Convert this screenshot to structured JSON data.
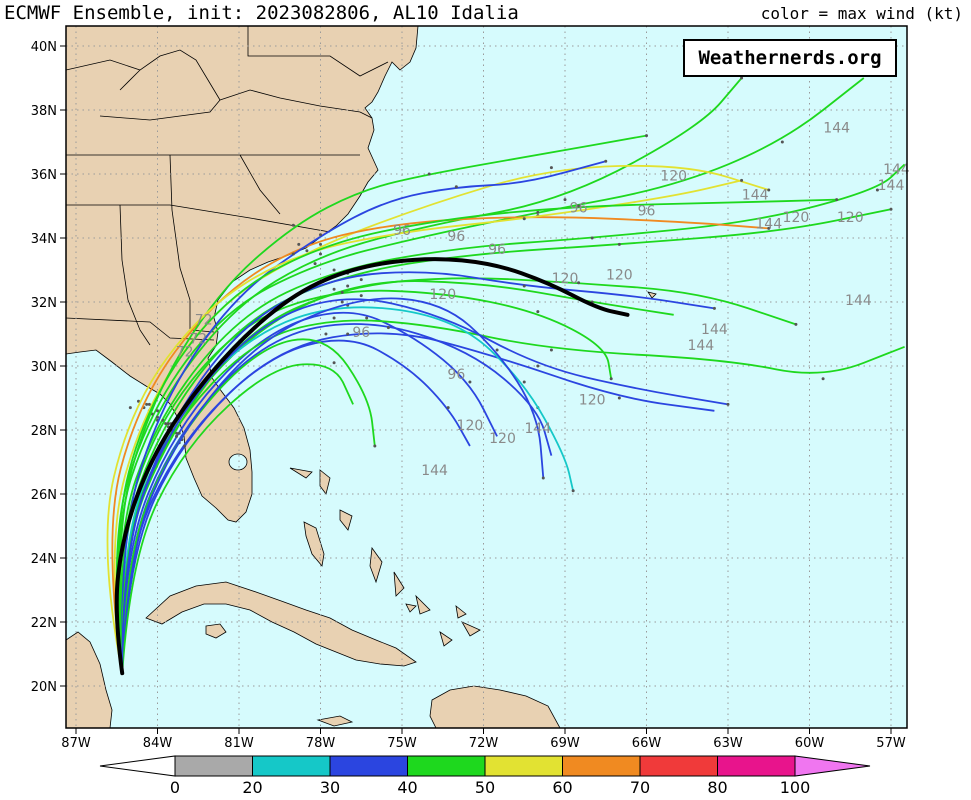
{
  "header": {
    "title": "ECMWF Ensemble, init: 2023082806, AL10 Idalia",
    "legend_note": "color = max wind (kt)"
  },
  "brand": "Weathernerds.org",
  "axes": {
    "lon_ticks": [
      "87W",
      "84W",
      "81W",
      "78W",
      "75W",
      "72W",
      "69W",
      "66W",
      "63W",
      "60W",
      "57W"
    ],
    "lat_ticks": [
      "40N",
      "38N",
      "36N",
      "34N",
      "32N",
      "30N",
      "28N",
      "26N",
      "24N",
      "22N",
      "20N"
    ]
  },
  "colors": {
    "ocean": "#d6fbfd",
    "land": "#e8d1b2",
    "grid": "#9a9a9a",
    "mean_track": "#000000"
  },
  "colorbar": {
    "labels": [
      "0",
      "20",
      "30",
      "40",
      "50",
      "60",
      "70",
      "80",
      "100"
    ],
    "bins": [
      {
        "color": "#ffffff"
      },
      {
        "color": "#a9a9a9"
      },
      {
        "color": "#15c8c8"
      },
      {
        "color": "#2b45e0"
      },
      {
        "color": "#1ed81e"
      },
      {
        "color": "#e2e232"
      },
      {
        "color": "#f08a21"
      },
      {
        "color": "#f03a3a"
      },
      {
        "color": "#e8148c"
      },
      {
        "color": "#f076f0"
      }
    ]
  },
  "forecast_hour_labels": [
    "72",
    "72",
    "72",
    "96",
    "96",
    "96",
    "96",
    "96",
    "96",
    "96",
    "120",
    "120",
    "120",
    "120",
    "120",
    "120",
    "120",
    "120",
    "120",
    "144",
    "144",
    "144",
    "144",
    "144",
    "144",
    "144",
    "144",
    "144",
    "144"
  ],
  "tracks": [
    {
      "color": "#1ed81e",
      "pts": [
        [
          -85.3,
          20.4
        ],
        [
          -85.8,
          24.5
        ],
        [
          -84.3,
          28.6
        ],
        [
          -81.6,
          31.7
        ],
        [
          -78.2,
          33.2
        ],
        [
          -74.5,
          34.0
        ],
        [
          -70.0,
          34.8
        ],
        [
          -65.0,
          35.6
        ],
        [
          -61.0,
          37.0
        ],
        [
          -58.0,
          39.0
        ]
      ]
    },
    {
      "color": "#1ed81e",
      "pts": [
        [
          -85.3,
          20.4
        ],
        [
          -85.7,
          24.6
        ],
        [
          -84.2,
          28.5
        ],
        [
          -81.3,
          31.8
        ],
        [
          -78.0,
          33.5
        ],
        [
          -74.0,
          34.4
        ],
        [
          -69.0,
          35.2
        ],
        [
          -64.0,
          37.5
        ],
        [
          -62.5,
          39.0
        ]
      ]
    },
    {
      "color": "#e2e232",
      "pts": [
        [
          -85.3,
          20.4
        ],
        [
          -85.9,
          24.4
        ],
        [
          -84.5,
          28.7
        ],
        [
          -81.8,
          31.9
        ],
        [
          -78.5,
          33.6
        ],
        [
          -74.2,
          35.0
        ],
        [
          -69.5,
          36.2
        ],
        [
          -64.5,
          36.3
        ],
        [
          -61.5,
          35.5
        ]
      ]
    },
    {
      "color": "#1ed81e",
      "pts": [
        [
          -85.3,
          20.4
        ],
        [
          -85.6,
          24.5
        ],
        [
          -84.0,
          28.4
        ],
        [
          -81.0,
          31.6
        ],
        [
          -77.5,
          33.0
        ],
        [
          -73.0,
          33.7
        ],
        [
          -68.0,
          34.0
        ],
        [
          -62.0,
          34.5
        ],
        [
          -57.5,
          35.5
        ],
        [
          -56.5,
          36.3
        ]
      ]
    },
    {
      "color": "#1ed81e",
      "pts": [
        [
          -85.3,
          20.4
        ],
        [
          -85.5,
          24.3
        ],
        [
          -83.8,
          28.3
        ],
        [
          -80.8,
          31.5
        ],
        [
          -77.0,
          32.9
        ],
        [
          -72.5,
          33.5
        ],
        [
          -67.0,
          33.8
        ],
        [
          -61.0,
          34.2
        ],
        [
          -57.0,
          34.9
        ]
      ]
    },
    {
      "color": "#f08a21",
      "pts": [
        [
          -85.3,
          20.4
        ],
        [
          -86.0,
          24.7
        ],
        [
          -84.7,
          28.9
        ],
        [
          -82.0,
          32.0
        ],
        [
          -78.8,
          33.8
        ],
        [
          -75.0,
          34.5
        ],
        [
          -70.0,
          34.7
        ],
        [
          -64.5,
          34.5
        ],
        [
          -61.5,
          34.3
        ]
      ]
    },
    {
      "color": "#1ed81e",
      "pts": [
        [
          -85.3,
          20.4
        ],
        [
          -85.4,
          24.2
        ],
        [
          -83.6,
          28.1
        ],
        [
          -80.4,
          31.2
        ],
        [
          -76.5,
          32.7
        ],
        [
          -72.0,
          32.6
        ],
        [
          -68.0,
          32.0
        ],
        [
          -65.0,
          31.6
        ]
      ]
    },
    {
      "color": "#2b45e0",
      "pts": [
        [
          -85.3,
          20.4
        ],
        [
          -85.3,
          24.0
        ],
        [
          -83.4,
          28.0
        ],
        [
          -80.2,
          31.0
        ],
        [
          -77.0,
          31.9
        ],
        [
          -74.5,
          30.9
        ],
        [
          -72.5,
          29.5
        ],
        [
          -71.5,
          27.8
        ]
      ]
    },
    {
      "color": "#2b45e0",
      "pts": [
        [
          -85.3,
          20.4
        ],
        [
          -85.2,
          24.1
        ],
        [
          -83.3,
          27.9
        ],
        [
          -80.0,
          30.9
        ],
        [
          -76.3,
          31.5
        ],
        [
          -72.5,
          30.5
        ],
        [
          -70.0,
          28.7
        ],
        [
          -69.5,
          27.2
        ]
      ]
    },
    {
      "color": "#2b45e0",
      "pts": [
        [
          -85.3,
          20.4
        ],
        [
          -85.1,
          24.0
        ],
        [
          -83.1,
          27.7
        ],
        [
          -79.6,
          30.6
        ],
        [
          -75.5,
          31.2
        ],
        [
          -71.5,
          30.3
        ],
        [
          -67.0,
          29.0
        ],
        [
          -63.5,
          28.6
        ]
      ]
    },
    {
      "color": "#1ed81e",
      "pts": [
        [
          -85.3,
          20.4
        ],
        [
          -85.3,
          24.3
        ],
        [
          -83.6,
          28.0
        ],
        [
          -80.5,
          30.8
        ],
        [
          -77.5,
          31.5
        ],
        [
          -74.0,
          31.3
        ],
        [
          -69.5,
          30.5
        ],
        [
          -63.0,
          30.2
        ],
        [
          -59.5,
          29.6
        ],
        [
          -56.5,
          30.6
        ]
      ]
    },
    {
      "color": "#15c8c8",
      "pts": [
        [
          -85.3,
          20.4
        ],
        [
          -85.4,
          24.2
        ],
        [
          -83.7,
          28.2
        ],
        [
          -80.6,
          31.0
        ],
        [
          -77.2,
          32.0
        ],
        [
          -73.0,
          31.5
        ],
        [
          -70.5,
          29.5
        ],
        [
          -69.0,
          27.2
        ],
        [
          -68.7,
          26.1
        ]
      ]
    },
    {
      "color": "#2b45e0",
      "pts": [
        [
          -85.3,
          20.4
        ],
        [
          -85.2,
          24.0
        ],
        [
          -83.2,
          27.6
        ],
        [
          -80.0,
          30.3
        ],
        [
          -77.0,
          31.0
        ],
        [
          -74.8,
          30.0
        ],
        [
          -73.3,
          28.7
        ],
        [
          -72.5,
          27.5
        ]
      ]
    },
    {
      "color": "#1ed81e",
      "pts": [
        [
          -85.3,
          20.4
        ],
        [
          -85.5,
          24.4
        ],
        [
          -84.0,
          28.3
        ],
        [
          -81.0,
          31.3
        ],
        [
          -77.5,
          32.4
        ],
        [
          -73.5,
          32.3
        ],
        [
          -70.0,
          31.7
        ],
        [
          -67.5,
          30.6
        ],
        [
          -67.3,
          29.6
        ]
      ]
    },
    {
      "color": "#2b45e0",
      "pts": [
        [
          -85.3,
          20.4
        ],
        [
          -85.4,
          24.5
        ],
        [
          -84.0,
          28.6
        ],
        [
          -81.3,
          32.1
        ],
        [
          -78.0,
          34.1
        ],
        [
          -75.5,
          35.2
        ],
        [
          -73.0,
          35.6
        ],
        [
          -70.5,
          35.7
        ],
        [
          -67.5,
          36.4
        ]
      ]
    },
    {
      "color": "#1ed81e",
      "pts": [
        [
          -85.3,
          20.4
        ],
        [
          -85.6,
          24.7
        ],
        [
          -84.3,
          28.8
        ],
        [
          -81.8,
          32.3
        ],
        [
          -79.0,
          34.4
        ],
        [
          -76.5,
          35.5
        ],
        [
          -74.0,
          36.0
        ],
        [
          -70.0,
          36.6
        ],
        [
          -66.0,
          37.2
        ]
      ]
    },
    {
      "color": "#1ed81e",
      "pts": [
        [
          -85.3,
          20.4
        ],
        [
          -85.2,
          24.1
        ],
        [
          -83.3,
          27.8
        ],
        [
          -80.3,
          30.6
        ],
        [
          -77.8,
          31.0
        ],
        [
          -76.2,
          29.0
        ],
        [
          -76.0,
          27.5
        ]
      ]
    },
    {
      "color": "#2b45e0",
      "pts": [
        [
          -85.3,
          20.4
        ],
        [
          -85.1,
          24.2
        ],
        [
          -83.2,
          27.9
        ],
        [
          -80.2,
          30.9
        ],
        [
          -76.5,
          32.2
        ],
        [
          -73.5,
          32.0
        ],
        [
          -71.5,
          30.5
        ],
        [
          -70.0,
          28.5
        ],
        [
          -69.8,
          26.5
        ]
      ]
    },
    {
      "color": "#1ed81e",
      "pts": [
        [
          -85.3,
          20.4
        ],
        [
          -85.4,
          24.1
        ],
        [
          -83.5,
          28.0
        ],
        [
          -80.6,
          31.2
        ],
        [
          -77.0,
          32.5
        ],
        [
          -73.0,
          32.8
        ],
        [
          -68.5,
          32.6
        ],
        [
          -64.0,
          32.3
        ],
        [
          -60.5,
          31.3
        ]
      ]
    },
    {
      "color": "#2b45e0",
      "pts": [
        [
          -85.3,
          20.4
        ],
        [
          -85.3,
          24.3
        ],
        [
          -83.5,
          28.2
        ],
        [
          -80.5,
          31.2
        ],
        [
          -77.2,
          32.3
        ],
        [
          -73.5,
          31.6
        ],
        [
          -70.0,
          30.0
        ],
        [
          -66.5,
          29.3
        ],
        [
          -63.0,
          28.8
        ]
      ]
    },
    {
      "color": "#e2e232",
      "pts": [
        [
          -85.3,
          20.4
        ],
        [
          -86.2,
          24.4
        ],
        [
          -85.0,
          28.7
        ],
        [
          -82.3,
          31.8
        ],
        [
          -79.0,
          33.5
        ],
        [
          -75.0,
          34.2
        ],
        [
          -70.5,
          34.6
        ],
        [
          -65.0,
          35.3
        ],
        [
          -62.5,
          35.8
        ]
      ]
    },
    {
      "color": "#1ed81e",
      "pts": [
        [
          -85.3,
          20.4
        ],
        [
          -85.0,
          24.0
        ],
        [
          -83.0,
          27.5
        ],
        [
          -79.8,
          30.0
        ],
        [
          -77.5,
          30.1
        ],
        [
          -76.8,
          28.8
        ]
      ]
    },
    {
      "color": "#2b45e0",
      "pts": [
        [
          -85.3,
          20.4
        ],
        [
          -85.3,
          24.2
        ],
        [
          -83.6,
          28.2
        ],
        [
          -80.8,
          31.4
        ],
        [
          -77.5,
          32.8
        ],
        [
          -74.0,
          33.0
        ],
        [
          -70.5,
          32.5
        ],
        [
          -66.5,
          32.2
        ],
        [
          -63.5,
          31.8
        ]
      ]
    },
    {
      "color": "#1ed81e",
      "pts": [
        [
          -85.3,
          20.4
        ],
        [
          -85.7,
          24.6
        ],
        [
          -84.4,
          28.8
        ],
        [
          -81.6,
          32.1
        ],
        [
          -78.0,
          33.8
        ],
        [
          -73.5,
          34.6
        ],
        [
          -68.5,
          35.0
        ],
        [
          -63.0,
          35.1
        ],
        [
          -59.0,
          35.2
        ]
      ]
    }
  ],
  "mean_track": [
    [
      -85.3,
      20.4
    ],
    [
      -85.6,
      22.3
    ],
    [
      -85.3,
      24.6
    ],
    [
      -84.4,
      26.8
    ],
    [
      -83.0,
      28.8
    ],
    [
      -81.0,
      30.8
    ],
    [
      -78.9,
      32.3
    ],
    [
      -76.7,
      33.1
    ],
    [
      -74.0,
      33.4
    ],
    [
      -71.6,
      33.2
    ],
    [
      -69.6,
      32.6
    ],
    [
      -67.8,
      31.8
    ],
    [
      -66.7,
      31.6
    ]
  ]
}
